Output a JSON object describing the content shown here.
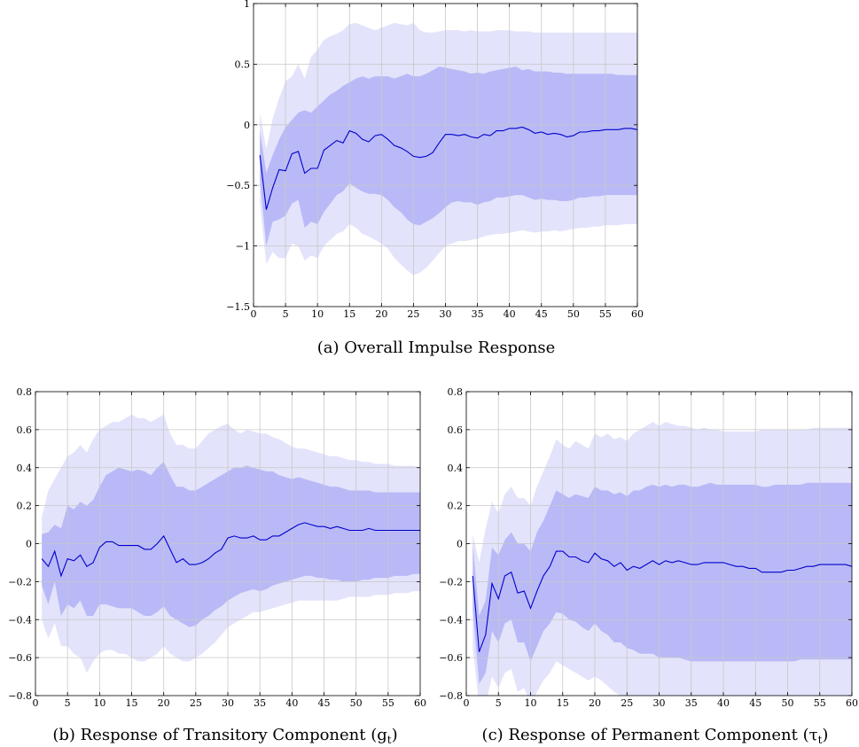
{
  "colors": {
    "outer_band": "#e3e3fb",
    "inner_band": "#b9b9f7",
    "line": "#0000cc",
    "grid": "#c8c8c8",
    "axis": "#000000"
  },
  "chart_data": [
    {
      "id": "a",
      "type": "line",
      "caption": "(a)  Overall Impulse Response",
      "xlim": [
        0,
        60
      ],
      "ylim": [
        -1.5,
        1
      ],
      "xticks": [
        0,
        5,
        10,
        15,
        20,
        25,
        30,
        35,
        40,
        45,
        50,
        55,
        60
      ],
      "yticks": [
        -1.5,
        -1,
        -0.5,
        0,
        0.5,
        1
      ],
      "ytick_labels": [
        "−1.5",
        "−1",
        "−0.5",
        "0",
        "0.5",
        "1"
      ],
      "grid": true,
      "x": [
        1,
        2,
        3,
        4,
        5,
        6,
        7,
        8,
        9,
        10,
        11,
        12,
        13,
        14,
        15,
        16,
        17,
        18,
        19,
        20,
        21,
        22,
        23,
        24,
        25,
        26,
        27,
        28,
        29,
        30,
        31,
        32,
        33,
        34,
        35,
        36,
        37,
        38,
        39,
        40,
        41,
        42,
        43,
        44,
        45,
        46,
        47,
        48,
        49,
        50,
        51,
        52,
        53,
        54,
        55,
        56,
        57,
        58,
        59,
        60
      ],
      "median": [
        -0.25,
        -0.7,
        -0.52,
        -0.37,
        -0.38,
        -0.24,
        -0.22,
        -0.4,
        -0.36,
        -0.36,
        -0.21,
        -0.17,
        -0.13,
        -0.15,
        -0.05,
        -0.07,
        -0.12,
        -0.14,
        -0.09,
        -0.08,
        -0.12,
        -0.17,
        -0.19,
        -0.22,
        -0.26,
        -0.27,
        -0.26,
        -0.23,
        -0.15,
        -0.08,
        -0.08,
        -0.09,
        -0.08,
        -0.1,
        -0.11,
        -0.08,
        -0.09,
        -0.05,
        -0.05,
        -0.03,
        -0.03,
        -0.02,
        -0.04,
        -0.07,
        -0.06,
        -0.08,
        -0.07,
        -0.08,
        -0.1,
        -0.09,
        -0.06,
        -0.06,
        -0.05,
        -0.05,
        -0.04,
        -0.04,
        -0.04,
        -0.03,
        -0.03,
        -0.04
      ],
      "inner_upper": [
        -0.05,
        -0.4,
        -0.25,
        -0.12,
        -0.02,
        0.04,
        0.1,
        0.12,
        0.1,
        0.15,
        0.2,
        0.25,
        0.28,
        0.32,
        0.35,
        0.38,
        0.4,
        0.38,
        0.4,
        0.4,
        0.4,
        0.38,
        0.4,
        0.42,
        0.4,
        0.4,
        0.42,
        0.45,
        0.48,
        0.47,
        0.46,
        0.45,
        0.44,
        0.42,
        0.43,
        0.42,
        0.44,
        0.45,
        0.46,
        0.47,
        0.48,
        0.45,
        0.46,
        0.44,
        0.44,
        0.44,
        0.43,
        0.43,
        0.42,
        0.42,
        0.42,
        0.42,
        0.42,
        0.42,
        0.42,
        0.42,
        0.41,
        0.41,
        0.41,
        0.41
      ],
      "inner_lower": [
        -0.45,
        -1.0,
        -0.8,
        -0.78,
        -0.75,
        -0.65,
        -0.62,
        -0.85,
        -0.8,
        -0.82,
        -0.72,
        -0.65,
        -0.58,
        -0.55,
        -0.48,
        -0.52,
        -0.55,
        -0.57,
        -0.57,
        -0.58,
        -0.62,
        -0.68,
        -0.72,
        -0.78,
        -0.82,
        -0.83,
        -0.8,
        -0.77,
        -0.73,
        -0.68,
        -0.64,
        -0.63,
        -0.64,
        -0.64,
        -0.66,
        -0.64,
        -0.63,
        -0.6,
        -0.6,
        -0.59,
        -0.58,
        -0.58,
        -0.6,
        -0.62,
        -0.61,
        -0.62,
        -0.62,
        -0.63,
        -0.63,
        -0.62,
        -0.6,
        -0.6,
        -0.59,
        -0.59,
        -0.58,
        -0.58,
        -0.58,
        -0.58,
        -0.58,
        -0.58
      ],
      "outer_upper": [
        0.1,
        -0.2,
        0.05,
        0.22,
        0.36,
        0.4,
        0.5,
        0.38,
        0.56,
        0.62,
        0.7,
        0.73,
        0.75,
        0.78,
        0.83,
        0.84,
        0.82,
        0.8,
        0.78,
        0.8,
        0.82,
        0.84,
        0.83,
        0.82,
        0.84,
        0.78,
        0.76,
        0.76,
        0.77,
        0.78,
        0.78,
        0.78,
        0.77,
        0.78,
        0.77,
        0.77,
        0.77,
        0.78,
        0.78,
        0.78,
        0.77,
        0.77,
        0.77,
        0.76,
        0.76,
        0.76,
        0.76,
        0.76,
        0.76,
        0.76,
        0.76,
        0.76,
        0.76,
        0.76,
        0.76,
        0.76,
        0.76,
        0.76,
        0.76,
        0.76
      ],
      "outer_lower": [
        -0.65,
        -1.15,
        -1.05,
        -1.1,
        -1.1,
        -0.98,
        -1.0,
        -1.12,
        -1.08,
        -1.1,
        -1.0,
        -0.95,
        -0.9,
        -0.88,
        -0.82,
        -0.85,
        -0.9,
        -0.92,
        -0.95,
        -0.98,
        -1.02,
        -1.1,
        -1.15,
        -1.2,
        -1.24,
        -1.22,
        -1.18,
        -1.12,
        -1.06,
        -1.0,
        -0.98,
        -0.96,
        -0.96,
        -0.95,
        -0.94,
        -0.92,
        -0.91,
        -0.9,
        -0.9,
        -0.89,
        -0.88,
        -0.87,
        -0.88,
        -0.89,
        -0.88,
        -0.88,
        -0.87,
        -0.88,
        -0.87,
        -0.86,
        -0.85,
        -0.85,
        -0.84,
        -0.84,
        -0.83,
        -0.83,
        -0.83,
        -0.82,
        -0.82,
        -0.82
      ]
    },
    {
      "id": "b",
      "type": "line",
      "caption": "(b) Response of Transitory Component (g",
      "caption_sub": "t",
      "caption_end": ")",
      "xlim": [
        0,
        60
      ],
      "ylim": [
        -0.8,
        0.8
      ],
      "xticks": [
        0,
        5,
        10,
        15,
        20,
        25,
        30,
        35,
        40,
        45,
        50,
        55,
        60
      ],
      "yticks": [
        -0.8,
        -0.6,
        -0.4,
        -0.2,
        0,
        0.2,
        0.4,
        0.6,
        0.8
      ],
      "ytick_labels": [
        "−0.8",
        "−0.6",
        "−0.4",
        "−0.2",
        "0",
        "0.2",
        "0.4",
        "0.6",
        "0.8"
      ],
      "grid": true,
      "x": [
        1,
        2,
        3,
        4,
        5,
        6,
        7,
        8,
        9,
        10,
        11,
        12,
        13,
        14,
        15,
        16,
        17,
        18,
        19,
        20,
        21,
        22,
        23,
        24,
        25,
        26,
        27,
        28,
        29,
        30,
        31,
        32,
        33,
        34,
        35,
        36,
        37,
        38,
        39,
        40,
        41,
        42,
        43,
        44,
        45,
        46,
        47,
        48,
        49,
        50,
        51,
        52,
        53,
        54,
        55,
        56,
        57,
        58,
        59,
        60
      ],
      "median": [
        -0.08,
        -0.12,
        -0.04,
        -0.17,
        -0.08,
        -0.09,
        -0.06,
        -0.12,
        -0.1,
        -0.02,
        0.01,
        0.01,
        -0.01,
        -0.01,
        -0.01,
        -0.01,
        -0.03,
        -0.03,
        0.0,
        0.04,
        -0.03,
        -0.1,
        -0.08,
        -0.11,
        -0.11,
        -0.1,
        -0.08,
        -0.05,
        -0.03,
        0.03,
        0.04,
        0.03,
        0.03,
        0.04,
        0.02,
        0.02,
        0.04,
        0.04,
        0.06,
        0.08,
        0.1,
        0.11,
        0.1,
        0.09,
        0.09,
        0.08,
        0.09,
        0.08,
        0.07,
        0.07,
        0.07,
        0.08,
        0.07,
        0.07,
        0.07,
        0.07,
        0.07,
        0.07,
        0.07,
        0.07
      ],
      "inner_upper": [
        0.05,
        0.06,
        0.1,
        0.08,
        0.2,
        0.18,
        0.22,
        0.2,
        0.23,
        0.3,
        0.36,
        0.38,
        0.4,
        0.39,
        0.38,
        0.39,
        0.38,
        0.36,
        0.4,
        0.43,
        0.36,
        0.3,
        0.3,
        0.28,
        0.28,
        0.3,
        0.32,
        0.34,
        0.36,
        0.38,
        0.4,
        0.4,
        0.41,
        0.4,
        0.39,
        0.38,
        0.38,
        0.36,
        0.35,
        0.34,
        0.35,
        0.34,
        0.33,
        0.32,
        0.31,
        0.3,
        0.3,
        0.29,
        0.28,
        0.28,
        0.28,
        0.28,
        0.27,
        0.27,
        0.27,
        0.27,
        0.27,
        0.27,
        0.27,
        0.27
      ],
      "inner_lower": [
        -0.22,
        -0.32,
        -0.2,
        -0.38,
        -0.32,
        -0.34,
        -0.3,
        -0.38,
        -0.38,
        -0.32,
        -0.32,
        -0.33,
        -0.34,
        -0.34,
        -0.34,
        -0.36,
        -0.38,
        -0.38,
        -0.36,
        -0.33,
        -0.38,
        -0.4,
        -0.42,
        -0.44,
        -0.43,
        -0.4,
        -0.38,
        -0.35,
        -0.33,
        -0.3,
        -0.28,
        -0.26,
        -0.25,
        -0.24,
        -0.25,
        -0.24,
        -0.22,
        -0.21,
        -0.2,
        -0.19,
        -0.18,
        -0.17,
        -0.17,
        -0.18,
        -0.18,
        -0.19,
        -0.19,
        -0.2,
        -0.2,
        -0.2,
        -0.19,
        -0.19,
        -0.18,
        -0.18,
        -0.18,
        -0.17,
        -0.17,
        -0.17,
        -0.16,
        -0.16
      ],
      "outer_upper": [
        0.14,
        0.28,
        0.34,
        0.4,
        0.46,
        0.48,
        0.52,
        0.48,
        0.55,
        0.6,
        0.62,
        0.64,
        0.64,
        0.66,
        0.68,
        0.66,
        0.66,
        0.64,
        0.66,
        0.68,
        0.58,
        0.52,
        0.52,
        0.5,
        0.5,
        0.54,
        0.58,
        0.6,
        0.62,
        0.63,
        0.6,
        0.58,
        0.6,
        0.59,
        0.58,
        0.58,
        0.56,
        0.55,
        0.53,
        0.51,
        0.5,
        0.5,
        0.49,
        0.48,
        0.47,
        0.46,
        0.46,
        0.45,
        0.44,
        0.44,
        0.43,
        0.43,
        0.42,
        0.42,
        0.42,
        0.41,
        0.41,
        0.41,
        0.41,
        0.4
      ],
      "outer_lower": [
        -0.4,
        -0.5,
        -0.42,
        -0.54,
        -0.54,
        -0.58,
        -0.6,
        -0.68,
        -0.62,
        -0.58,
        -0.56,
        -0.56,
        -0.58,
        -0.58,
        -0.6,
        -0.62,
        -0.62,
        -0.6,
        -0.58,
        -0.54,
        -0.58,
        -0.6,
        -0.62,
        -0.62,
        -0.6,
        -0.58,
        -0.55,
        -0.52,
        -0.48,
        -0.44,
        -0.42,
        -0.4,
        -0.38,
        -0.36,
        -0.36,
        -0.35,
        -0.34,
        -0.33,
        -0.32,
        -0.31,
        -0.3,
        -0.3,
        -0.3,
        -0.3,
        -0.3,
        -0.3,
        -0.3,
        -0.29,
        -0.28,
        -0.28,
        -0.28,
        -0.28,
        -0.27,
        -0.27,
        -0.27,
        -0.26,
        -0.26,
        -0.26,
        -0.25,
        -0.25
      ]
    },
    {
      "id": "c",
      "type": "line",
      "caption": "(c) Response of Permanent Component (τ",
      "caption_sub": "t",
      "caption_end": ")",
      "xlim": [
        0,
        60
      ],
      "ylim": [
        -0.8,
        0.8
      ],
      "xticks": [
        0,
        5,
        10,
        15,
        20,
        25,
        30,
        35,
        40,
        45,
        50,
        55,
        60
      ],
      "yticks": [
        -0.8,
        -0.6,
        -0.4,
        -0.2,
        0,
        0.2,
        0.4,
        0.6,
        0.8
      ],
      "ytick_labels": [
        "−0.8",
        "−0.6",
        "−0.4",
        "−0.2",
        "0",
        "0.2",
        "0.4",
        "0.6",
        "0.8"
      ],
      "grid": true,
      "x": [
        1,
        2,
        3,
        4,
        5,
        6,
        7,
        8,
        9,
        10,
        11,
        12,
        13,
        14,
        15,
        16,
        17,
        18,
        19,
        20,
        21,
        22,
        23,
        24,
        25,
        26,
        27,
        28,
        29,
        30,
        31,
        32,
        33,
        34,
        35,
        36,
        37,
        38,
        39,
        40,
        41,
        42,
        43,
        44,
        45,
        46,
        47,
        48,
        49,
        50,
        51,
        52,
        53,
        54,
        55,
        56,
        57,
        58,
        59,
        60
      ],
      "median": [
        -0.17,
        -0.57,
        -0.48,
        -0.21,
        -0.29,
        -0.17,
        -0.15,
        -0.26,
        -0.25,
        -0.34,
        -0.25,
        -0.17,
        -0.12,
        -0.04,
        -0.04,
        -0.07,
        -0.07,
        -0.09,
        -0.1,
        -0.05,
        -0.08,
        -0.09,
        -0.12,
        -0.1,
        -0.14,
        -0.12,
        -0.13,
        -0.11,
        -0.09,
        -0.11,
        -0.09,
        -0.1,
        -0.09,
        -0.1,
        -0.11,
        -0.11,
        -0.1,
        -0.1,
        -0.1,
        -0.1,
        -0.11,
        -0.12,
        -0.12,
        -0.13,
        -0.13,
        -0.15,
        -0.15,
        -0.15,
        -0.15,
        -0.14,
        -0.14,
        -0.13,
        -0.12,
        -0.12,
        -0.11,
        -0.11,
        -0.11,
        -0.11,
        -0.11,
        -0.12
      ],
      "inner_upper": [
        0.0,
        -0.38,
        -0.3,
        -0.02,
        -0.06,
        0.02,
        0.06,
        0.0,
        0.0,
        -0.04,
        0.06,
        0.12,
        0.2,
        0.28,
        0.26,
        0.24,
        0.26,
        0.25,
        0.24,
        0.3,
        0.28,
        0.28,
        0.26,
        0.27,
        0.25,
        0.28,
        0.28,
        0.3,
        0.31,
        0.3,
        0.31,
        0.3,
        0.31,
        0.31,
        0.3,
        0.3,
        0.31,
        0.32,
        0.31,
        0.31,
        0.31,
        0.31,
        0.31,
        0.31,
        0.31,
        0.3,
        0.3,
        0.31,
        0.31,
        0.31,
        0.31,
        0.31,
        0.32,
        0.32,
        0.32,
        0.32,
        0.32,
        0.32,
        0.32,
        0.32
      ],
      "inner_lower": [
        -0.35,
        -0.74,
        -0.68,
        -0.46,
        -0.52,
        -0.42,
        -0.4,
        -0.52,
        -0.52,
        -0.62,
        -0.54,
        -0.46,
        -0.42,
        -0.36,
        -0.37,
        -0.4,
        -0.41,
        -0.44,
        -0.46,
        -0.42,
        -0.46,
        -0.48,
        -0.52,
        -0.52,
        -0.55,
        -0.56,
        -0.58,
        -0.58,
        -0.58,
        -0.6,
        -0.6,
        -0.6,
        -0.6,
        -0.61,
        -0.62,
        -0.62,
        -0.62,
        -0.62,
        -0.62,
        -0.62,
        -0.62,
        -0.62,
        -0.62,
        -0.62,
        -0.62,
        -0.62,
        -0.62,
        -0.62,
        -0.62,
        -0.62,
        -0.62,
        -0.61,
        -0.61,
        -0.61,
        -0.61,
        -0.61,
        -0.61,
        -0.61,
        -0.61,
        -0.61
      ],
      "outer_upper": [
        0.05,
        -0.1,
        0.08,
        0.22,
        0.16,
        0.26,
        0.3,
        0.24,
        0.24,
        0.2,
        0.3,
        0.38,
        0.46,
        0.55,
        0.52,
        0.5,
        0.54,
        0.52,
        0.5,
        0.58,
        0.56,
        0.58,
        0.55,
        0.56,
        0.54,
        0.58,
        0.6,
        0.62,
        0.64,
        0.62,
        0.64,
        0.63,
        0.62,
        0.62,
        0.61,
        0.6,
        0.61,
        0.6,
        0.6,
        0.59,
        0.59,
        0.59,
        0.59,
        0.59,
        0.59,
        0.6,
        0.6,
        0.6,
        0.6,
        0.6,
        0.6,
        0.6,
        0.6,
        0.61,
        0.61,
        0.61,
        0.61,
        0.61,
        0.61,
        0.61
      ],
      "outer_lower": [
        -0.55,
        -0.85,
        -0.85,
        -0.7,
        -0.76,
        -0.68,
        -0.66,
        -0.78,
        -0.76,
        -0.85,
        -0.78,
        -0.72,
        -0.68,
        -0.62,
        -0.64,
        -0.66,
        -0.68,
        -0.7,
        -0.72,
        -0.7,
        -0.72,
        -0.75,
        -0.78,
        -0.8,
        -0.82,
        -0.84,
        -0.85,
        -0.86,
        -0.86,
        -0.87,
        -0.87,
        -0.88,
        -0.88,
        -0.88,
        -0.88,
        -0.88,
        -0.89,
        -0.89,
        -0.89,
        -0.89,
        -0.89,
        -0.89,
        -0.89,
        -0.89,
        -0.89,
        -0.89,
        -0.89,
        -0.89,
        -0.89,
        -0.89,
        -0.89,
        -0.89,
        -0.89,
        -0.89,
        -0.89,
        -0.89,
        -0.89,
        -0.89,
        -0.89,
        -0.89
      ]
    }
  ]
}
